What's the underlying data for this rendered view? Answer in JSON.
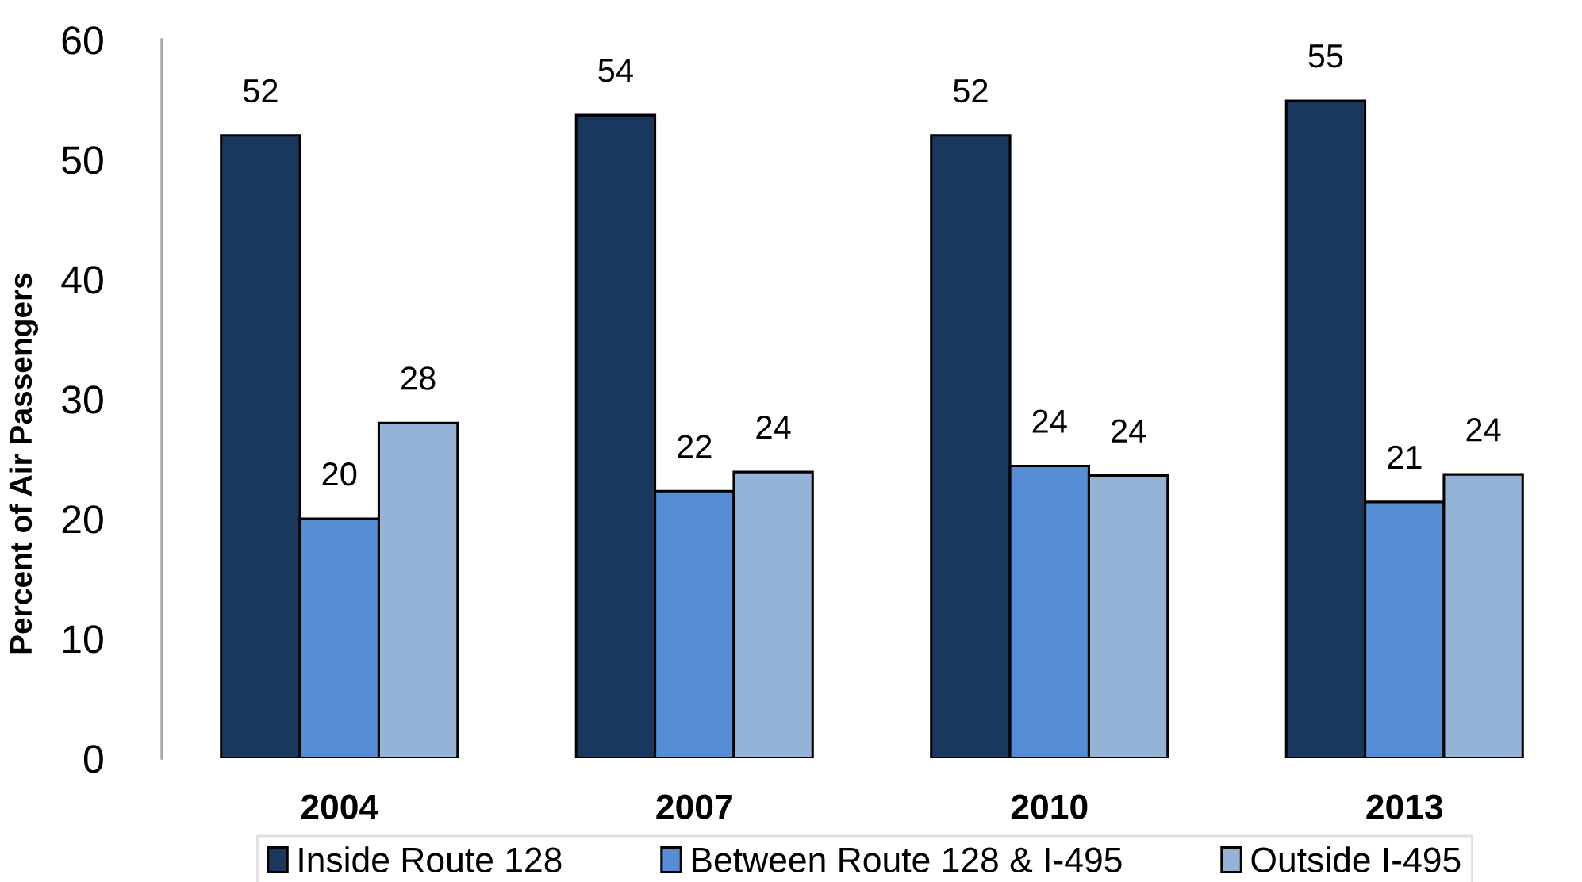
{
  "chart_data": {
    "type": "bar",
    "ylabel": "Percent of Air Passengers",
    "categories": [
      "2004",
      "2007",
      "2010",
      "2013"
    ],
    "series": [
      {
        "name": "Inside Route 128",
        "color": "#1a375e",
        "values": [
          52.0,
          53.7,
          52.0,
          54.9
        ],
        "value_labels": [
          "52",
          "54",
          "52",
          "55"
        ]
      },
      {
        "name": "Between Route 128 & I-495",
        "color": "#558ed5",
        "values": [
          20.0,
          22.3,
          24.4,
          21.4
        ],
        "value_labels": [
          "20",
          "22",
          "24",
          "21"
        ]
      },
      {
        "name": "Outside I-495",
        "color": "#95b3d7",
        "values": [
          28.0,
          23.9,
          23.6,
          23.7
        ],
        "value_labels": [
          "28",
          "24",
          "24",
          "24"
        ]
      }
    ],
    "ylim": [
      0,
      60
    ],
    "yticks": [
      0,
      10,
      20,
      30,
      40,
      50,
      60
    ],
    "grid": false,
    "legend": "bottom"
  }
}
